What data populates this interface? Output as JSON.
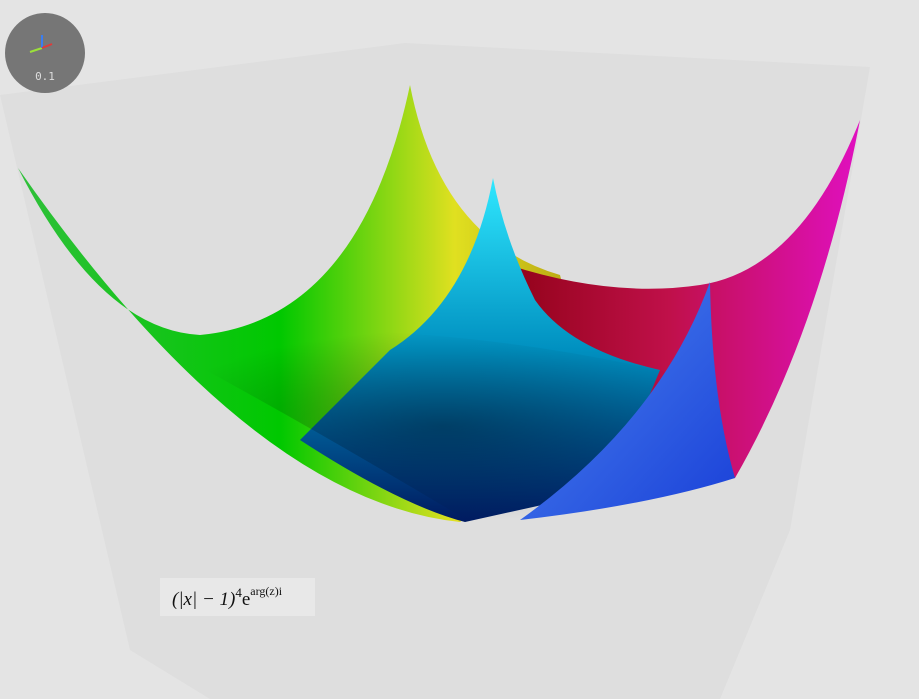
{
  "widget": {
    "scale_label": "0.1"
  },
  "formula": {
    "base": "(|x| − 1)",
    "power": "4",
    "exp_base": "e",
    "exponent": "arg(z)i"
  }
}
